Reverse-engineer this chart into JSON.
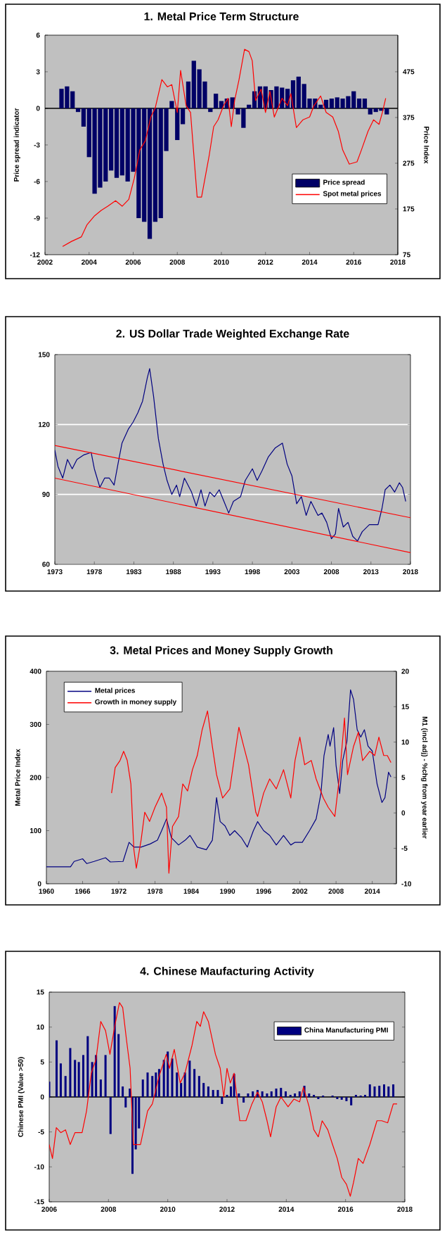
{
  "chart_data": [
    {
      "type": "bar",
      "title": "1. Metal Price Term Structure",
      "ylabel": "Price spread indicator",
      "y2label": "Price Index",
      "xlim": [
        2002,
        2018
      ],
      "xticks": [
        2002,
        2004,
        2006,
        2008,
        2010,
        2012,
        2014,
        2016,
        2018
      ],
      "ylim": [
        -12,
        6
      ],
      "yticks": [
        -12,
        -9,
        -6,
        -3,
        0,
        3,
        6
      ],
      "y2lim": [
        75,
        555
      ],
      "y2ticks": [
        75,
        175,
        275,
        375,
        475
      ],
      "legend": "right",
      "ref_lines": [
        {
          "axis": "y",
          "value": 0,
          "color": "#000000"
        }
      ],
      "series": [
        {
          "name": "Price spread",
          "type": "bar",
          "color": "#000066",
          "x": [
            2002.75,
            2003,
            2003.25,
            2003.5,
            2003.75,
            2004,
            2004.25,
            2004.5,
            2004.75,
            2005,
            2005.25,
            2005.5,
            2005.75,
            2006,
            2006.25,
            2006.5,
            2006.75,
            2007,
            2007.25,
            2007.5,
            2007.75,
            2008,
            2008.25,
            2008.5,
            2008.75,
            2009,
            2009.25,
            2009.5,
            2009.75,
            2010,
            2010.25,
            2010.5,
            2010.75,
            2011,
            2011.25,
            2011.5,
            2011.75,
            2012,
            2012.25,
            2012.5,
            2012.75,
            2013,
            2013.25,
            2013.5,
            2013.75,
            2014,
            2014.25,
            2014.5,
            2014.75,
            2015,
            2015.25,
            2015.5,
            2015.75,
            2016,
            2016.25,
            2016.5,
            2016.75,
            2017,
            2017.25,
            2017.5
          ],
          "values": [
            1.6,
            1.8,
            1.4,
            -0.3,
            -1.5,
            -4.0,
            -7.0,
            -6.5,
            -6.0,
            -5.1,
            -5.7,
            -5.5,
            -6.0,
            -5.2,
            -9.0,
            -9.3,
            -10.7,
            -9.3,
            -9.0,
            -3.5,
            0.6,
            -2.6,
            -1.3,
            2.2,
            3.9,
            3.2,
            2.2,
            -0.3,
            1.2,
            0.6,
            0.8,
            0.9,
            -0.5,
            -1.6,
            0.3,
            1.4,
            1.8,
            1.8,
            1.5,
            1.8,
            1.7,
            1.6,
            2.3,
            2.6,
            2.0,
            0.8,
            0.8,
            0.3,
            0.7,
            0.8,
            0.9,
            0.8,
            1.0,
            1.4,
            0.8,
            0.8,
            -0.5,
            -0.3,
            -0.2,
            -0.5
          ]
        },
        {
          "name": "Spot metal prices",
          "type": "line",
          "axis": "y2",
          "color": "#ff0000",
          "x": [
            2002.8,
            2003.2,
            2003.65,
            2003.9,
            2004.25,
            2004.55,
            2004.85,
            2005.2,
            2005.5,
            2005.8,
            2006.05,
            2006.3,
            2006.55,
            2006.8,
            2007.0,
            2007.3,
            2007.55,
            2007.75,
            2008.0,
            2008.15,
            2008.4,
            2008.6,
            2008.9,
            2009.1,
            2009.45,
            2009.65,
            2009.85,
            2010.1,
            2010.3,
            2010.45,
            2010.6,
            2010.8,
            2011.05,
            2011.25,
            2011.4,
            2011.55,
            2011.8,
            2012.0,
            2012.2,
            2012.4,
            2012.75,
            2013.0,
            2013.15,
            2013.4,
            2013.7,
            2014.0,
            2014.2,
            2014.5,
            2014.75,
            2015.05,
            2015.3,
            2015.5,
            2015.8,
            2016.15,
            2016.35,
            2016.65,
            2016.9,
            2017.15,
            2017.3,
            2017.45
          ],
          "values": [
            93,
            104,
            114,
            140,
            160,
            172,
            181,
            193,
            181,
            196,
            242,
            304,
            324,
            376,
            396,
            458,
            442,
            447,
            386,
            478,
            401,
            386,
            201,
            201,
            293,
            355,
            370,
            401,
            417,
            355,
            412,
            458,
            524,
            519,
            499,
            412,
            437,
            386,
            432,
            376,
            417,
            401,
            427,
            353,
            370,
            376,
            401,
            422,
            386,
            376,
            345,
            304,
            273,
            278,
            304,
            345,
            370,
            360,
            386,
            417
          ]
        }
      ]
    },
    {
      "type": "line",
      "title": "2.  US Dollar Trade Weighted Exchange Rate",
      "xlim": [
        1973,
        2018
      ],
      "xticks": [
        1973,
        1978,
        1983,
        1988,
        1993,
        1998,
        2003,
        2008,
        2013,
        2018
      ],
      "ylim": [
        60,
        150
      ],
      "yticks": [
        60,
        90,
        120,
        150
      ],
      "grid": "y",
      "series": [
        {
          "color": "#000080",
          "x": [
            1973,
            1973.4,
            1974,
            1974.6,
            1975.2,
            1975.8,
            1976.7,
            1977.6,
            1978,
            1978.7,
            1979.3,
            1979.9,
            1980.5,
            1981.1,
            1981.5,
            1982.3,
            1982.9,
            1983.5,
            1984.1,
            1984.7,
            1985,
            1985.5,
            1986.1,
            1986.7,
            1987.2,
            1987.8,
            1988.4,
            1988.8,
            1989.4,
            1990.3,
            1990.9,
            1991.5,
            1992,
            1992.6,
            1993.2,
            1993.8,
            1994.4,
            1995,
            1995.6,
            1996.5,
            1997.1,
            1998,
            1998.6,
            1999.2,
            2000,
            2000.9,
            2001.8,
            2002.4,
            2003,
            2003.6,
            2004.2,
            2004.8,
            2005.4,
            2006.3,
            2006.8,
            2007.4,
            2008,
            2008.5,
            2008.9,
            2009.5,
            2010.1,
            2010.7,
            2011.3,
            2011.9,
            2012.8,
            2013.9,
            2014.4,
            2014.8,
            2015.4,
            2016,
            2016.6,
            2017,
            2017.4
          ],
          "values": [
            109,
            102,
            97,
            105,
            101,
            105,
            107,
            108,
            101,
            93,
            97,
            97,
            94,
            105,
            112,
            118,
            121,
            125,
            130,
            140,
            144,
            132,
            114,
            103,
            96,
            90,
            94,
            89,
            97,
            91,
            85,
            92,
            85,
            91,
            89,
            92,
            87,
            82,
            87,
            89,
            96,
            101,
            96,
            100,
            106,
            110,
            112,
            103,
            98,
            86,
            89,
            81,
            87,
            81,
            82,
            78,
            71,
            73,
            84,
            76,
            78,
            72,
            70,
            74,
            77,
            77,
            84,
            92,
            94,
            91,
            95,
            93,
            87
          ]
        },
        {
          "type": "line",
          "color": "#ff0000",
          "x": [
            1973,
            2018
          ],
          "values": [
            111,
            80
          ]
        },
        {
          "type": "line",
          "color": "#ff0000",
          "x": [
            1973,
            2018
          ],
          "values": [
            97,
            65
          ]
        }
      ]
    },
    {
      "type": "line",
      "title": "3.  Metal Prices and Money Supply Growth",
      "ylabel": "Metal Price Index",
      "y2label": "M1 (incl adj) - %chg from year earlier",
      "xlim": [
        1960,
        2018
      ],
      "xticks": [
        1960,
        1966,
        1972,
        1978,
        1984,
        1990,
        1996,
        2002,
        2008,
        2014
      ],
      "ylim": [
        0,
        400
      ],
      "yticks": [
        0,
        100,
        200,
        300,
        400
      ],
      "y2lim": [
        -10,
        20
      ],
      "y2ticks": [
        -10,
        -5,
        0,
        5,
        10,
        15,
        20
      ],
      "legend": "top left",
      "series": [
        {
          "name": "Metal prices",
          "color": "#000080",
          "x": [
            1960,
            1964,
            1964.6,
            1966,
            1966.7,
            1967.9,
            1969.8,
            1970.6,
            1972.7,
            1973.7,
            1974.5,
            1975.7,
            1977.2,
            1978.4,
            1979.1,
            1979.9,
            1980.7,
            1981.9,
            1983,
            1983.8,
            1985,
            1986.5,
            1987.5,
            1988.2,
            1988.8,
            1989.6,
            1990.4,
            1991.2,
            1992.3,
            1993.3,
            1994.3,
            1995,
            1996,
            1997,
            1998.1,
            1999.3,
            2000.5,
            2001.2,
            2002.4,
            2003.6,
            2004.7,
            2005.5,
            2006,
            2006.7,
            2007,
            2007.6,
            2008,
            2008.6,
            2009.1,
            2009.8,
            2010.4,
            2010.9,
            2011.5,
            2012.1,
            2012.7,
            2013.3,
            2014,
            2014.8,
            2015.6,
            2016.1,
            2016.7,
            2017.1
          ],
          "values": [
            32,
            32,
            42,
            47,
            38,
            42,
            49,
            41,
            42,
            78,
            69,
            69,
            75,
            82,
            100,
            122,
            87,
            73,
            82,
            91,
            69,
            64,
            82,
            162,
            117,
            109,
            91,
            100,
            87,
            69,
            100,
            117,
            100,
            91,
            73,
            91,
            73,
            78,
            78,
            100,
            122,
            170,
            241,
            281,
            259,
            294,
            223,
            170,
            232,
            268,
            365,
            347,
            290,
            276,
            290,
            259,
            250,
            188,
            153,
            162,
            210,
            201
          ]
        },
        {
          "name": "Growth in money supply",
          "axis": "y2",
          "color": "#ff0000",
          "x": [
            1970.8,
            1971.4,
            1972.2,
            1972.8,
            1973.4,
            1974,
            1974.5,
            1974.9,
            1975.7,
            1976.3,
            1977.1,
            1978,
            1979.1,
            1979.9,
            1980.3,
            1980.9,
            1981.9,
            1982.6,
            1983.4,
            1984.2,
            1985,
            1985.8,
            1986.7,
            1987.5,
            1988.2,
            1989.2,
            1990.4,
            1991.2,
            1991.9,
            1992.7,
            1993.5,
            1994.7,
            1995,
            1996,
            1997,
            1998.1,
            1999.3,
            2000.5,
            2001.2,
            2002,
            2002.8,
            2003.9,
            2004.7,
            2005.9,
            2006.7,
            2007.8,
            2008.6,
            2009.4,
            2009.9,
            2010.9,
            2011.7,
            2012.4,
            2013.6,
            2014.4,
            2015.1,
            2015.9,
            2016.5,
            2017.1
          ],
          "values": [
            2.8,
            6.4,
            7.4,
            8.7,
            7.4,
            4.1,
            -5.2,
            -7.8,
            -3.8,
            0.1,
            -1.2,
            0.8,
            2.8,
            0.8,
            -8.5,
            -1.9,
            -0.5,
            4.1,
            3.1,
            6.1,
            8.1,
            11.7,
            14.4,
            9.4,
            5.4,
            2.1,
            3.4,
            8.1,
            12.1,
            9.4,
            6.8,
            0.1,
            -0.5,
            2.8,
            4.8,
            3.4,
            6.1,
            2.1,
            7.4,
            10.7,
            6.8,
            7.4,
            4.8,
            2.1,
            0.8,
            -0.5,
            5.4,
            13.4,
            5.4,
            9.4,
            11.4,
            7.4,
            8.7,
            8.1,
            10.7,
            8.1,
            8.1,
            7.1
          ]
        }
      ]
    },
    {
      "type": "bar",
      "title": "4.  Chinese Maufacturing Activity",
      "ylabel": "Chinese PMI (Value >50)",
      "xlim": [
        2006,
        2018
      ],
      "xticks": [
        2006,
        2008,
        2010,
        2012,
        2014,
        2016,
        2018
      ],
      "ylim": [
        -15,
        15
      ],
      "yticks": [
        -15,
        -10,
        -5,
        0,
        5,
        10,
        15
      ],
      "legend": "top right",
      "ref_lines": [
        {
          "axis": "y",
          "value": 0,
          "color": "#000000"
        }
      ],
      "series": [
        {
          "name": "China Manufacturing PMI",
          "type": "bar",
          "color": "#000080",
          "x": [
            2006.0,
            2006.25,
            2006.39,
            2006.55,
            2006.71,
            2006.87,
            2007.0,
            2007.15,
            2007.3,
            2007.45,
            2007.58,
            2007.74,
            2007.9,
            2008.07,
            2008.21,
            2008.34,
            2008.48,
            2008.58,
            2008.72,
            2008.81,
            2008.92,
            2009.03,
            2009.16,
            2009.32,
            2009.48,
            2009.6,
            2009.71,
            2009.87,
            2010.0,
            2010.15,
            2010.31,
            2010.45,
            2010.58,
            2010.74,
            2010.9,
            2011.06,
            2011.21,
            2011.37,
            2011.53,
            2011.69,
            2011.83,
            2012.0,
            2012.13,
            2012.24,
            2012.4,
            2012.56,
            2012.71,
            2012.87,
            2013.03,
            2013.19,
            2013.35,
            2013.5,
            2013.66,
            2013.82,
            2013.98,
            2014.14,
            2014.29,
            2014.45,
            2014.61,
            2014.77,
            2014.93,
            2015.08,
            2015.24,
            2015.4,
            2015.56,
            2015.72,
            2015.87,
            2016.03,
            2016.19,
            2016.35,
            2016.51,
            2016.66,
            2016.82,
            2016.98,
            2017.14,
            2017.3,
            2017.45,
            2017.61
          ],
          "values": [
            2.2,
            8.1,
            4.8,
            3.0,
            7.0,
            5.3,
            5.0,
            6.0,
            8.7,
            5.0,
            6.0,
            2.5,
            6.0,
            -5.3,
            13.0,
            9.0,
            1.5,
            -1.5,
            1.2,
            -11.0,
            -7.5,
            -4.5,
            2.5,
            3.5,
            3.0,
            3.5,
            4.0,
            5.3,
            6.5,
            5.5,
            3.5,
            2.0,
            3.5,
            5.2,
            4.0,
            3.0,
            2.0,
            1.5,
            1.0,
            1.0,
            -1.0,
            0.3,
            1.5,
            3.3,
            0.5,
            -0.8,
            0.5,
            0.8,
            1.0,
            0.8,
            0.5,
            0.8,
            1.2,
            1.3,
            0.8,
            0.3,
            0.5,
            0.8,
            1.6,
            0.5,
            0.3,
            -0.3,
            0.2,
            null,
            0.2,
            -0.3,
            -0.4,
            -0.6,
            -1.2,
            0.3,
            0.2,
            0.3,
            1.8,
            1.5,
            1.6,
            1.8,
            1.5,
            1.8
          ]
        },
        {
          "type": "line",
          "color": "#ff0000",
          "x": [
            2006.0,
            2006.11,
            2006.24,
            2006.39,
            2006.55,
            2006.71,
            2006.87,
            2007.11,
            2007.26,
            2007.42,
            2007.58,
            2007.74,
            2007.9,
            2008.05,
            2008.21,
            2008.37,
            2008.48,
            2008.61,
            2008.73,
            2008.84,
            2009.08,
            2009.32,
            2009.48,
            2009.71,
            2009.95,
            2010.06,
            2010.22,
            2010.42,
            2010.58,
            2010.82,
            2010.98,
            2011.1,
            2011.21,
            2011.37,
            2011.61,
            2011.77,
            2011.89,
            2012.0,
            2012.11,
            2012.24,
            2012.43,
            2012.64,
            2012.84,
            2013.03,
            2013.19,
            2013.35,
            2013.47,
            2013.66,
            2013.82,
            2014.06,
            2014.26,
            2014.45,
            2014.58,
            2014.77,
            2014.93,
            2015.08,
            2015.21,
            2015.4,
            2015.56,
            2015.72,
            2015.87,
            2016.03,
            2016.16,
            2016.27,
            2016.43,
            2016.59,
            2016.82,
            2017.06,
            2017.22,
            2017.42,
            2017.61,
            2017.74
          ],
          "values": [
            -6.8,
            -8.8,
            -4.4,
            -5.1,
            -4.7,
            -6.8,
            -5.1,
            -5.1,
            -2.0,
            3.4,
            5.4,
            10.8,
            9.5,
            6.1,
            10.1,
            13.5,
            12.8,
            8.1,
            4.1,
            -6.8,
            -6.8,
            -2.0,
            -1.0,
            3.0,
            6.1,
            4.1,
            6.8,
            2.0,
            3.4,
            7.4,
            10.8,
            10.1,
            12.2,
            10.8,
            6.1,
            4.1,
            0.0,
            4.1,
            2.0,
            3.4,
            -3.4,
            -3.4,
            -1.0,
            0.7,
            -0.7,
            -3.4,
            -5.7,
            -1.4,
            0.0,
            -1.4,
            -0.3,
            -0.7,
            1.4,
            -1.4,
            -4.7,
            -5.7,
            -3.4,
            -4.7,
            -6.8,
            -8.8,
            -11.5,
            -12.5,
            -14.2,
            -12.2,
            -8.8,
            -9.5,
            -6.8,
            -3.4,
            -3.4,
            -3.7,
            -1.0,
            -1.0
          ]
        }
      ]
    }
  ]
}
